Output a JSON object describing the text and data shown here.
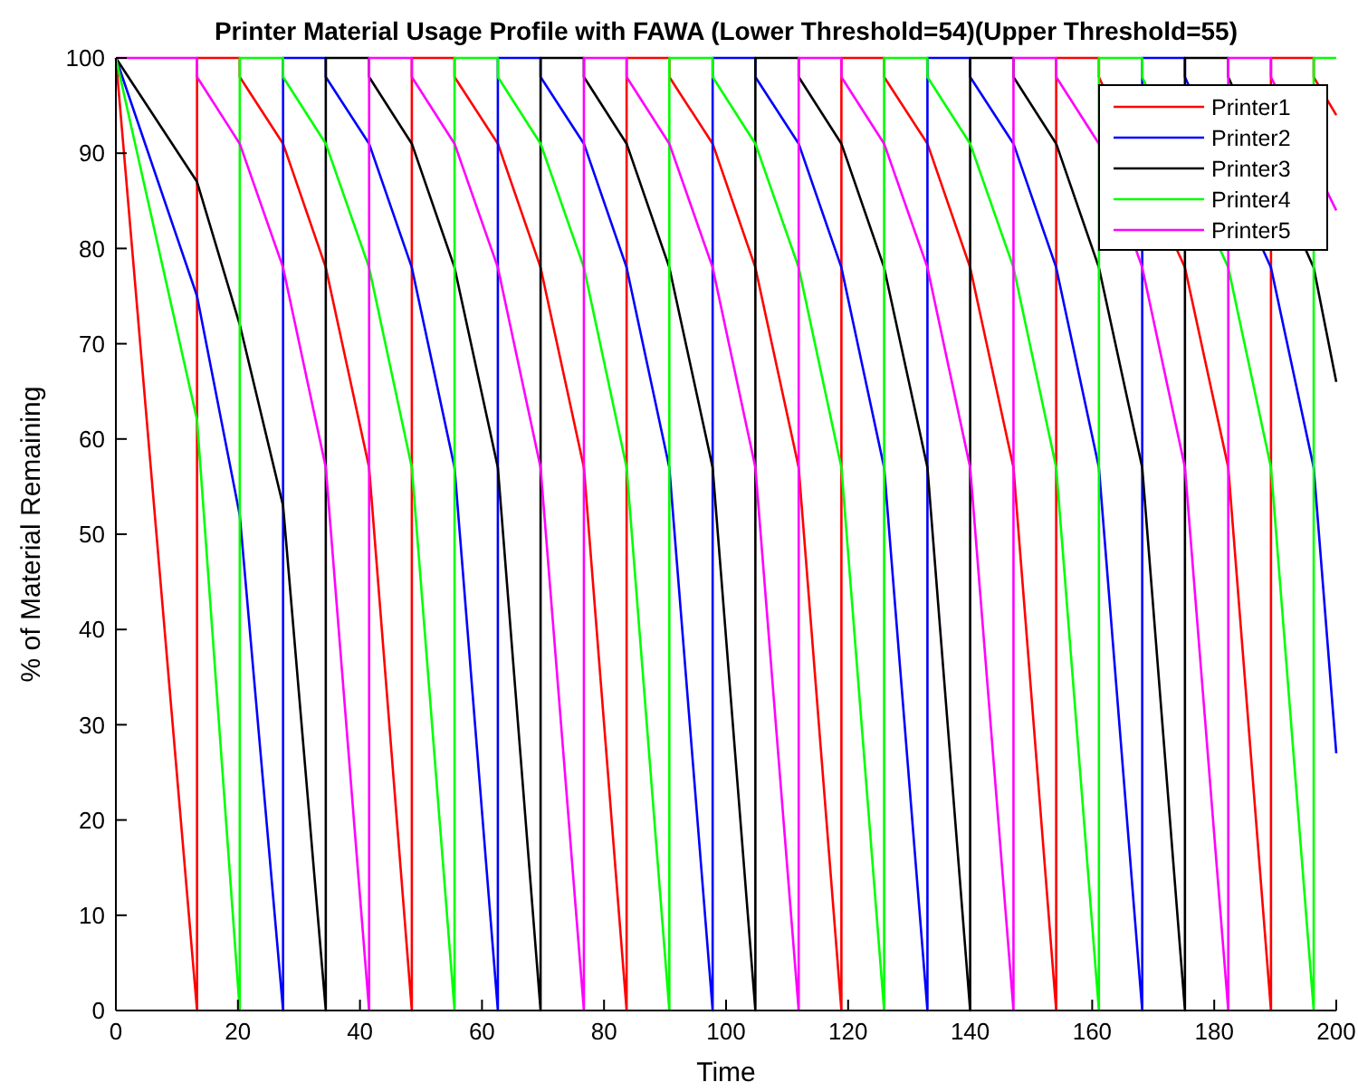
{
  "chart_data": {
    "type": "line",
    "title": "Printer Material Usage Profile with FAWA (Lower Threshold=54)(Upper Threshold=55)",
    "xlabel": "Time",
    "ylabel": "% of Material Remaining",
    "xlim": [
      0,
      200
    ],
    "ylim": [
      0,
      100
    ],
    "xticks": [
      0,
      20,
      40,
      60,
      80,
      100,
      120,
      140,
      160,
      180,
      200
    ],
    "yticks": [
      0,
      10,
      20,
      30,
      40,
      50,
      60,
      70,
      80,
      90,
      100
    ],
    "grid": false,
    "legend": "top right",
    "marker": "none",
    "line_style": "solid",
    "series": [
      {
        "name": "Printer1",
        "color": "#ff0000",
        "x": [
          0,
          13.3,
          13.3,
          20.3,
          20.3,
          27.4,
          34.4,
          41.5,
          48.5,
          48.5,
          55.5,
          55.5,
          62.6,
          69.6,
          76.7,
          83.7,
          83.7,
          90.7,
          90.7,
          97.8,
          104.8,
          111.9,
          118.9,
          118.9,
          125.9,
          125.9,
          133,
          140,
          147.1,
          154.1,
          154.1,
          161.1,
          161.1,
          168.2,
          175.2,
          182.3,
          189.3,
          189.3,
          196.3,
          196.3,
          200
        ],
        "values": [
          100,
          0,
          100,
          100,
          98,
          91,
          78,
          57,
          0,
          100,
          100,
          98,
          91,
          78,
          57,
          0,
          100,
          100,
          98,
          91,
          78,
          57,
          0,
          100,
          100,
          98,
          91,
          78,
          57,
          0,
          100,
          100,
          98,
          null,
          78,
          57,
          0,
          100,
          100,
          98,
          94
        ]
      },
      {
        "name": "Printer2",
        "color": "#0000ff",
        "x": [
          0,
          13.3,
          20.3,
          27.4,
          27.4,
          34.4,
          34.4,
          41.5,
          48.5,
          55.5,
          62.6,
          62.6,
          69.6,
          69.6,
          76.7,
          83.7,
          90.7,
          97.8,
          97.8,
          104.8,
          104.8,
          111.9,
          118.9,
          125.9,
          133,
          133,
          140,
          140,
          147.1,
          154.1,
          161.1,
          168.2,
          168.2,
          175.2,
          175.2,
          182.3,
          189.3,
          196.3,
          200
        ],
        "values": [
          100,
          75,
          52,
          0,
          100,
          100,
          98,
          91,
          78,
          57,
          0,
          100,
          100,
          98,
          91,
          78,
          57,
          0,
          100,
          100,
          98,
          91,
          78,
          57,
          0,
          100,
          100,
          98,
          91,
          78,
          57,
          0,
          100,
          100,
          98,
          null,
          78,
          57,
          27
        ]
      },
      {
        "name": "Printer3",
        "color": "#000000",
        "x": [
          0,
          13.3,
          20.3,
          27.4,
          34.4,
          34.4,
          41.5,
          41.5,
          48.5,
          55.5,
          62.6,
          69.6,
          69.6,
          76.7,
          76.7,
          83.7,
          90.7,
          97.8,
          104.8,
          104.8,
          111.9,
          111.9,
          118.9,
          125.9,
          133,
          140,
          140,
          147.1,
          147.1,
          154.1,
          161.1,
          168.2,
          175.2,
          175.2,
          182.3,
          182.3,
          189.3,
          196.3,
          200
        ],
        "values": [
          100,
          87,
          72,
          53,
          0,
          100,
          100,
          98,
          91,
          78,
          57,
          0,
          100,
          100,
          98,
          91,
          78,
          57,
          0,
          100,
          100,
          98,
          91,
          78,
          57,
          0,
          100,
          100,
          98,
          91,
          78,
          57,
          0,
          100,
          100,
          98,
          null,
          78,
          66
        ]
      },
      {
        "name": "Printer4",
        "color": "#00ff00",
        "x": [
          0,
          13.3,
          20.3,
          20.3,
          27.4,
          27.4,
          34.4,
          41.5,
          48.5,
          55.5,
          55.5,
          62.6,
          62.6,
          69.6,
          76.7,
          83.7,
          90.7,
          90.7,
          97.8,
          97.8,
          104.8,
          111.9,
          118.9,
          125.9,
          125.9,
          133,
          133,
          140,
          147.1,
          154.1,
          161.1,
          161.1,
          168.2,
          168.2,
          175.2,
          182.3,
          189.3,
          196.3,
          196.3,
          200
        ],
        "values": [
          100,
          62,
          0,
          100,
          100,
          98,
          91,
          78,
          57,
          0,
          100,
          100,
          98,
          91,
          78,
          57,
          0,
          100,
          100,
          98,
          91,
          78,
          57,
          0,
          100,
          100,
          98,
          91,
          78,
          57,
          0,
          100,
          100,
          98,
          null,
          78,
          57,
          0,
          100,
          100
        ]
      },
      {
        "name": "Printer5",
        "color": "#ff00ff",
        "x": [
          0,
          13.3,
          13.3,
          20.3,
          27.4,
          34.4,
          41.5,
          41.5,
          48.5,
          48.5,
          55.5,
          62.6,
          69.6,
          76.7,
          76.7,
          83.7,
          83.7,
          90.7,
          97.8,
          104.8,
          111.9,
          111.9,
          118.9,
          118.9,
          125.9,
          133,
          140,
          147.1,
          147.1,
          154.1,
          154.1,
          161.1,
          168.2,
          175.2,
          182.3,
          182.3,
          189.3,
          189.3,
          196.3,
          200
        ],
        "values": [
          100,
          100,
          98,
          91,
          78,
          57,
          0,
          100,
          100,
          98,
          91,
          78,
          57,
          0,
          100,
          100,
          98,
          91,
          78,
          57,
          0,
          100,
          100,
          98,
          91,
          78,
          57,
          0,
          100,
          100,
          98,
          91,
          78,
          57,
          0,
          100,
          100,
          98,
          null,
          84
        ]
      }
    ]
  }
}
